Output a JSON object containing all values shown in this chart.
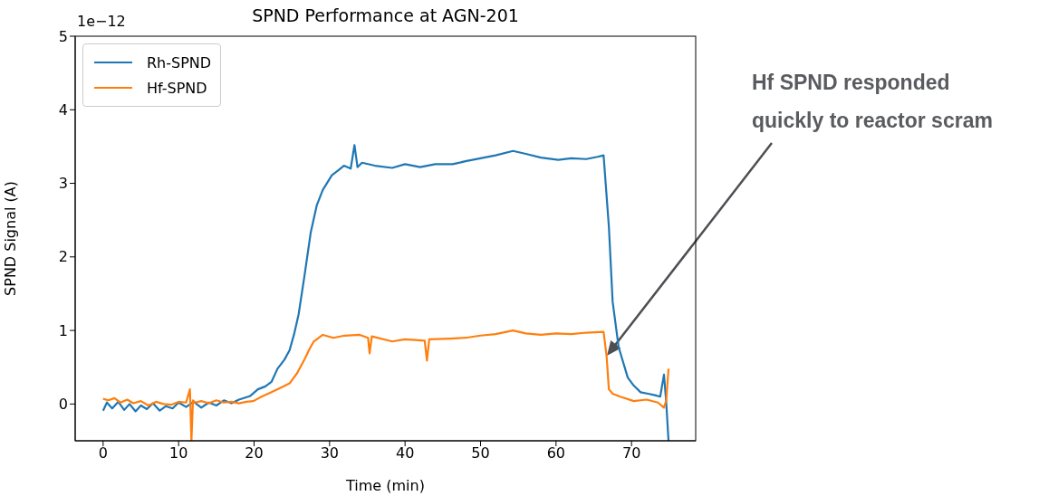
{
  "chart_data": {
    "type": "line",
    "title": "SPND Performance at AGN-201",
    "xlabel": "Time (min)",
    "ylabel": "SPND Signal (A)",
    "xlim": [
      -3.7,
      78.5
    ],
    "ylim": [
      -0.5,
      5
    ],
    "xticks": [
      0,
      10,
      20,
      30,
      40,
      50,
      60,
      70
    ],
    "yticks": [
      0,
      1,
      2,
      3,
      4,
      5
    ],
    "legend": "top left",
    "annotations": [
      "1e−12",
      "Hf SPND responded quickly to reactor scram"
    ],
    "series": [
      {
        "name": "Rh-SPND",
        "color": "#1f77b4",
        "x": [
          0,
          0.5,
          1.2,
          2,
          2.8,
          3.5,
          4.3,
          5,
          5.8,
          6.6,
          7.5,
          8.3,
          9.2,
          10,
          11,
          12,
          13,
          14,
          15,
          16,
          17,
          18,
          19.5,
          20.5,
          21.5,
          22.3,
          23.1,
          24,
          24.7,
          25.3,
          25.9,
          26.7,
          27.5,
          28.3,
          29.1,
          30.3,
          31.2,
          31.9,
          32.8,
          33.3,
          33.7,
          34.3,
          36,
          38.3,
          40,
          42,
          44,
          46.3,
          48,
          50,
          52,
          54.3,
          56,
          58,
          60.3,
          62,
          64,
          65.5,
          66.3,
          67,
          67.5,
          68.3,
          69.5,
          70.3,
          71.2,
          72.2,
          73.1,
          73.8,
          74.3,
          74.6,
          74.9
        ],
        "values": [
          -0.09,
          0.02,
          -0.06,
          0.03,
          -0.08,
          0,
          -0.1,
          -0.02,
          -0.07,
          0.01,
          -0.09,
          -0.03,
          -0.06,
          0.02,
          -0.04,
          0.03,
          -0.05,
          0.02,
          -0.02,
          0.05,
          0.01,
          0.06,
          0.11,
          0.2,
          0.24,
          0.3,
          0.48,
          0.6,
          0.73,
          0.95,
          1.22,
          1.76,
          2.33,
          2.7,
          2.91,
          3.11,
          3.18,
          3.24,
          3.2,
          3.52,
          3.22,
          3.28,
          3.24,
          3.21,
          3.26,
          3.22,
          3.26,
          3.26,
          3.3,
          3.34,
          3.38,
          3.44,
          3.4,
          3.35,
          3.32,
          3.34,
          3.33,
          3.36,
          3.38,
          2.41,
          1.39,
          0.77,
          0.36,
          0.25,
          0.16,
          0.14,
          0.12,
          0.1,
          0.4,
          0.02,
          -0.5
        ]
      },
      {
        "name": "Hf-SPND",
        "color": "#ff7f0e",
        "x": [
          0,
          0.7,
          1.5,
          2.3,
          3.2,
          4,
          5,
          6,
          7,
          8,
          9,
          10,
          11,
          11.5,
          11.7,
          11.9,
          12.2,
          13,
          14,
          15,
          16,
          17,
          18,
          19,
          19.9,
          21,
          22.3,
          23.5,
          24.7,
          25.7,
          26.7,
          27.3,
          27.9,
          29.1,
          30.5,
          32,
          34,
          35.1,
          35.3,
          35.6,
          38.3,
          40,
          42.6,
          42.9,
          43.2,
          46,
          48,
          50,
          52,
          54.3,
          56,
          58,
          60,
          62,
          64,
          66.3,
          66.7,
          67,
          67.5,
          68.5,
          70.3,
          72,
          73.5,
          74.3,
          74.6,
          74.9
        ],
        "values": [
          0.07,
          0.05,
          0.08,
          0.02,
          0.06,
          0.01,
          0.04,
          -0.02,
          0.03,
          0,
          -0.01,
          0.03,
          0.02,
          0.2,
          -0.5,
          0.05,
          0.02,
          0.04,
          0.01,
          0.05,
          0.02,
          0.03,
          0.01,
          0.03,
          0.04,
          0.1,
          0.16,
          0.22,
          0.28,
          0.42,
          0.61,
          0.74,
          0.85,
          0.94,
          0.9,
          0.93,
          0.94,
          0.9,
          0.69,
          0.92,
          0.85,
          0.88,
          0.86,
          0.59,
          0.88,
          0.89,
          0.9,
          0.93,
          0.95,
          1.0,
          0.96,
          0.94,
          0.96,
          0.95,
          0.97,
          0.98,
          0.65,
          0.2,
          0.14,
          0.1,
          0.04,
          0.06,
          0.02,
          -0.05,
          0.05,
          0.48
        ]
      }
    ]
  }
}
